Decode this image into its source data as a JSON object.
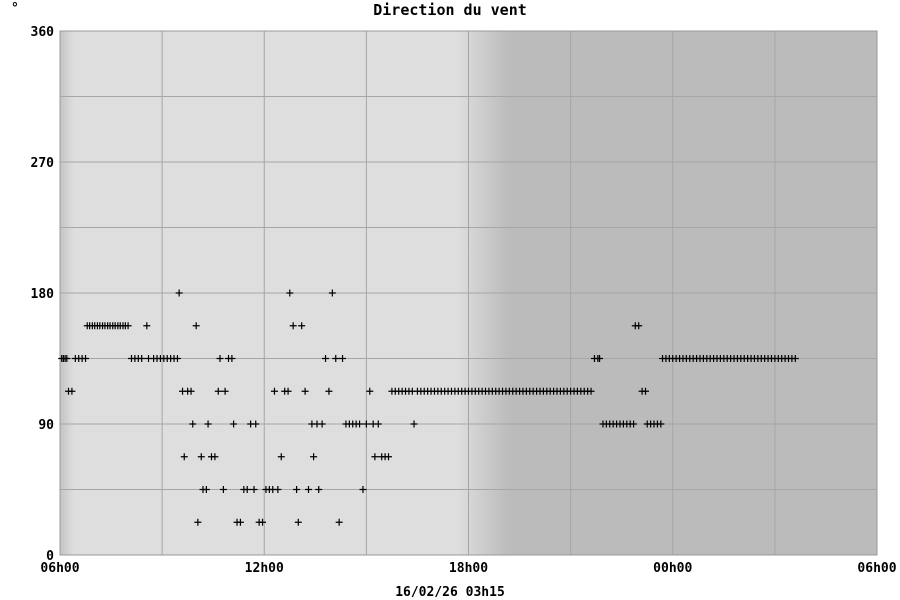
{
  "chart_data": {
    "type": "scatter",
    "title": "Direction du vent",
    "unit_label": "°",
    "footer": "16/02/26 03h15",
    "xlabel": "",
    "ylabel": "",
    "x_ticks": [
      "06h00",
      "12h00",
      "18h00",
      "00h00",
      "06h00"
    ],
    "x_tick_hours": [
      6,
      12,
      18,
      24,
      30
    ],
    "xlim_hours": [
      6,
      30
    ],
    "y_ticks": [
      0,
      90,
      180,
      270,
      360
    ],
    "ylim": [
      0,
      360
    ],
    "grid": true,
    "colors": {
      "day_background": "#dedede",
      "night_background": "#bbbbbb",
      "grid": "#a6a6a6",
      "marker": "#000000"
    },
    "night_start_hour": 19.2,
    "series": [
      {
        "marker": "plus",
        "points": [
          [
            6.05,
            135
          ],
          [
            6.1,
            135
          ],
          [
            6.15,
            135
          ],
          [
            6.2,
            135
          ],
          [
            6.25,
            112.5
          ],
          [
            6.35,
            112.5
          ],
          [
            6.45,
            135
          ],
          [
            6.55,
            135
          ],
          [
            6.65,
            135
          ],
          [
            6.75,
            135
          ],
          [
            6.8,
            157.5
          ],
          [
            6.87,
            157.5
          ],
          [
            6.95,
            157.5
          ],
          [
            7.02,
            157.5
          ],
          [
            7.1,
            157.5
          ],
          [
            7.17,
            157.5
          ],
          [
            7.25,
            157.5
          ],
          [
            7.32,
            157.5
          ],
          [
            7.4,
            157.5
          ],
          [
            7.47,
            157.5
          ],
          [
            7.55,
            157.5
          ],
          [
            7.62,
            157.5
          ],
          [
            7.7,
            157.5
          ],
          [
            7.77,
            157.5
          ],
          [
            7.85,
            157.5
          ],
          [
            7.92,
            157.5
          ],
          [
            8.0,
            157.5
          ],
          [
            8.1,
            135
          ],
          [
            8.2,
            135
          ],
          [
            8.3,
            135
          ],
          [
            8.4,
            135
          ],
          [
            8.55,
            157.5
          ],
          [
            8.6,
            135
          ],
          [
            8.75,
            135
          ],
          [
            8.85,
            135
          ],
          [
            8.95,
            135
          ],
          [
            9.05,
            135
          ],
          [
            9.15,
            135
          ],
          [
            9.25,
            135
          ],
          [
            9.35,
            135
          ],
          [
            9.45,
            135
          ],
          [
            9.5,
            180
          ],
          [
            9.6,
            112.5
          ],
          [
            9.65,
            67.5
          ],
          [
            9.75,
            112.5
          ],
          [
            9.85,
            112.5
          ],
          [
            9.9,
            90
          ],
          [
            10.0,
            157.5
          ],
          [
            10.05,
            22.5
          ],
          [
            10.15,
            67.5
          ],
          [
            10.2,
            45
          ],
          [
            10.3,
            45
          ],
          [
            10.35,
            90
          ],
          [
            10.45,
            67.5
          ],
          [
            10.55,
            67.5
          ],
          [
            10.65,
            112.5
          ],
          [
            10.7,
            135
          ],
          [
            10.8,
            45
          ],
          [
            10.85,
            112.5
          ],
          [
            10.95,
            135
          ],
          [
            11.05,
            135
          ],
          [
            11.1,
            90
          ],
          [
            11.2,
            22.5
          ],
          [
            11.3,
            22.5
          ],
          [
            11.4,
            45
          ],
          [
            11.5,
            45
          ],
          [
            11.6,
            90
          ],
          [
            11.7,
            45
          ],
          [
            11.75,
            90
          ],
          [
            11.85,
            22.5
          ],
          [
            11.95,
            22.5
          ],
          [
            12.05,
            45
          ],
          [
            12.15,
            45
          ],
          [
            12.25,
            45
          ],
          [
            12.3,
            112.5
          ],
          [
            12.4,
            45
          ],
          [
            12.5,
            67.5
          ],
          [
            12.6,
            112.5
          ],
          [
            12.7,
            112.5
          ],
          [
            12.75,
            180
          ],
          [
            12.85,
            157.5
          ],
          [
            12.95,
            45
          ],
          [
            13.0,
            22.5
          ],
          [
            13.1,
            157.5
          ],
          [
            13.2,
            112.5
          ],
          [
            13.3,
            45
          ],
          [
            13.4,
            90
          ],
          [
            13.45,
            67.5
          ],
          [
            13.55,
            90
          ],
          [
            13.6,
            45
          ],
          [
            13.7,
            90
          ],
          [
            13.8,
            135
          ],
          [
            13.9,
            112.5
          ],
          [
            14.0,
            180
          ],
          [
            14.1,
            135
          ],
          [
            14.2,
            22.5
          ],
          [
            14.3,
            135
          ],
          [
            14.4,
            90
          ],
          [
            14.5,
            90
          ],
          [
            14.6,
            90
          ],
          [
            14.7,
            90
          ],
          [
            14.8,
            90
          ],
          [
            14.9,
            45
          ],
          [
            15.0,
            90
          ],
          [
            15.1,
            112.5
          ],
          [
            15.2,
            90
          ],
          [
            15.25,
            67.5
          ],
          [
            15.35,
            90
          ],
          [
            15.45,
            67.5
          ],
          [
            15.55,
            67.5
          ],
          [
            15.65,
            67.5
          ],
          [
            15.75,
            112.5
          ],
          [
            15.85,
            112.5
          ],
          [
            15.95,
            112.5
          ],
          [
            16.05,
            112.5
          ],
          [
            16.15,
            112.5
          ],
          [
            16.25,
            112.5
          ],
          [
            16.35,
            112.5
          ],
          [
            16.4,
            90
          ],
          [
            16.5,
            112.5
          ],
          [
            16.6,
            112.5
          ],
          [
            16.7,
            112.5
          ],
          [
            16.8,
            112.5
          ],
          [
            16.9,
            112.5
          ],
          [
            17.0,
            112.5
          ],
          [
            17.1,
            112.5
          ],
          [
            17.2,
            112.5
          ],
          [
            17.3,
            112.5
          ],
          [
            17.4,
            112.5
          ],
          [
            17.5,
            112.5
          ],
          [
            17.6,
            112.5
          ],
          [
            17.7,
            112.5
          ],
          [
            17.8,
            112.5
          ],
          [
            17.9,
            112.5
          ],
          [
            18.0,
            112.5
          ],
          [
            18.1,
            112.5
          ],
          [
            18.2,
            112.5
          ],
          [
            18.3,
            112.5
          ],
          [
            18.4,
            112.5
          ],
          [
            18.5,
            112.5
          ],
          [
            18.6,
            112.5
          ],
          [
            18.7,
            112.5
          ],
          [
            18.8,
            112.5
          ],
          [
            18.9,
            112.5
          ],
          [
            19.0,
            112.5
          ],
          [
            19.1,
            112.5
          ],
          [
            19.2,
            112.5
          ],
          [
            19.3,
            112.5
          ],
          [
            19.4,
            112.5
          ],
          [
            19.5,
            112.5
          ],
          [
            19.6,
            112.5
          ],
          [
            19.7,
            112.5
          ],
          [
            19.8,
            112.5
          ],
          [
            19.9,
            112.5
          ],
          [
            20.0,
            112.5
          ],
          [
            20.1,
            112.5
          ],
          [
            20.2,
            112.5
          ],
          [
            20.3,
            112.5
          ],
          [
            20.4,
            112.5
          ],
          [
            20.5,
            112.5
          ],
          [
            20.6,
            112.5
          ],
          [
            20.7,
            112.5
          ],
          [
            20.8,
            112.5
          ],
          [
            20.9,
            112.5
          ],
          [
            21.0,
            112.5
          ],
          [
            21.1,
            112.5
          ],
          [
            21.2,
            112.5
          ],
          [
            21.3,
            112.5
          ],
          [
            21.4,
            112.5
          ],
          [
            21.5,
            112.5
          ],
          [
            21.6,
            112.5
          ],
          [
            21.7,
            135
          ],
          [
            21.8,
            135
          ],
          [
            21.85,
            135
          ],
          [
            21.95,
            90
          ],
          [
            22.05,
            90
          ],
          [
            22.15,
            90
          ],
          [
            22.25,
            90
          ],
          [
            22.35,
            90
          ],
          [
            22.45,
            90
          ],
          [
            22.55,
            90
          ],
          [
            22.65,
            90
          ],
          [
            22.75,
            90
          ],
          [
            22.85,
            90
          ],
          [
            22.9,
            157.5
          ],
          [
            23.0,
            157.5
          ],
          [
            23.1,
            112.5
          ],
          [
            23.2,
            112.5
          ],
          [
            23.25,
            90
          ],
          [
            23.35,
            90
          ],
          [
            23.45,
            90
          ],
          [
            23.55,
            90
          ],
          [
            23.65,
            90
          ],
          [
            23.7,
            135
          ],
          [
            23.8,
            135
          ],
          [
            23.9,
            135
          ],
          [
            24.0,
            135
          ],
          [
            24.1,
            135
          ],
          [
            24.2,
            135
          ],
          [
            24.3,
            135
          ],
          [
            24.4,
            135
          ],
          [
            24.5,
            135
          ],
          [
            24.6,
            135
          ],
          [
            24.7,
            135
          ],
          [
            24.8,
            135
          ],
          [
            24.9,
            135
          ],
          [
            25.0,
            135
          ],
          [
            25.1,
            135
          ],
          [
            25.2,
            135
          ],
          [
            25.3,
            135
          ],
          [
            25.4,
            135
          ],
          [
            25.5,
            135
          ],
          [
            25.6,
            135
          ],
          [
            25.7,
            135
          ],
          [
            25.8,
            135
          ],
          [
            25.9,
            135
          ],
          [
            26.0,
            135
          ],
          [
            26.1,
            135
          ],
          [
            26.2,
            135
          ],
          [
            26.3,
            135
          ],
          [
            26.4,
            135
          ],
          [
            26.5,
            135
          ],
          [
            26.6,
            135
          ],
          [
            26.7,
            135
          ],
          [
            26.8,
            135
          ],
          [
            26.9,
            135
          ],
          [
            27.0,
            135
          ],
          [
            27.1,
            135
          ],
          [
            27.2,
            135
          ],
          [
            27.3,
            135
          ],
          [
            27.4,
            135
          ],
          [
            27.5,
            135
          ],
          [
            27.6,
            135
          ]
        ]
      }
    ]
  }
}
